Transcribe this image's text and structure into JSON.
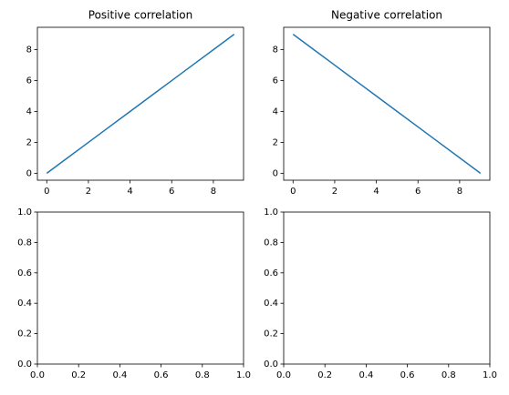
{
  "chart_data": [
    {
      "type": "line",
      "title": "Positive correlation",
      "x": [
        0,
        1,
        2,
        3,
        4,
        5,
        6,
        7,
        8,
        9
      ],
      "values": [
        0,
        1,
        2,
        3,
        4,
        5,
        6,
        7,
        8,
        9
      ],
      "color": "#1f77b4",
      "xlim": [
        -0.45,
        9.45
      ],
      "xticks": [
        0,
        2,
        4,
        6,
        8
      ],
      "ylim": [
        -0.45,
        9.45
      ],
      "yticks": [
        0,
        2,
        4,
        6,
        8
      ]
    },
    {
      "type": "line",
      "title": "Negative correlation",
      "x": [
        0,
        1,
        2,
        3,
        4,
        5,
        6,
        7,
        8,
        9
      ],
      "values": [
        9,
        8,
        7,
        6,
        5,
        4,
        3,
        2,
        1,
        0
      ],
      "color": "#1f77b4",
      "xlim": [
        -0.45,
        9.45
      ],
      "xticks": [
        0,
        2,
        4,
        6,
        8
      ],
      "ylim": [
        -0.45,
        9.45
      ],
      "yticks": [
        0,
        2,
        4,
        6,
        8
      ]
    },
    {
      "type": "line",
      "xlim": [
        0,
        1
      ],
      "xticks": [
        {
          "value": 0,
          "label": "0.0"
        },
        0.2,
        0.4,
        0.6,
        0.8,
        {
          "value": 1,
          "label": "1.0"
        }
      ],
      "ylim": [
        0,
        1
      ],
      "yticks": [
        {
          "value": 0,
          "label": "0.0"
        },
        0.2,
        0.4,
        0.6,
        0.8,
        {
          "value": 1,
          "label": "1.0"
        }
      ]
    },
    {
      "type": "line",
      "xlim": [
        0,
        1
      ],
      "xticks": [
        {
          "value": 0,
          "label": "0.0"
        },
        0.2,
        0.4,
        0.6,
        0.8,
        {
          "value": 1,
          "label": "1.0"
        }
      ],
      "ylim": [
        0,
        1
      ],
      "yticks": [
        {
          "value": 0,
          "label": "0.0"
        },
        0.2,
        0.4,
        0.6,
        0.8,
        {
          "value": 1,
          "label": "1.0"
        }
      ]
    }
  ]
}
